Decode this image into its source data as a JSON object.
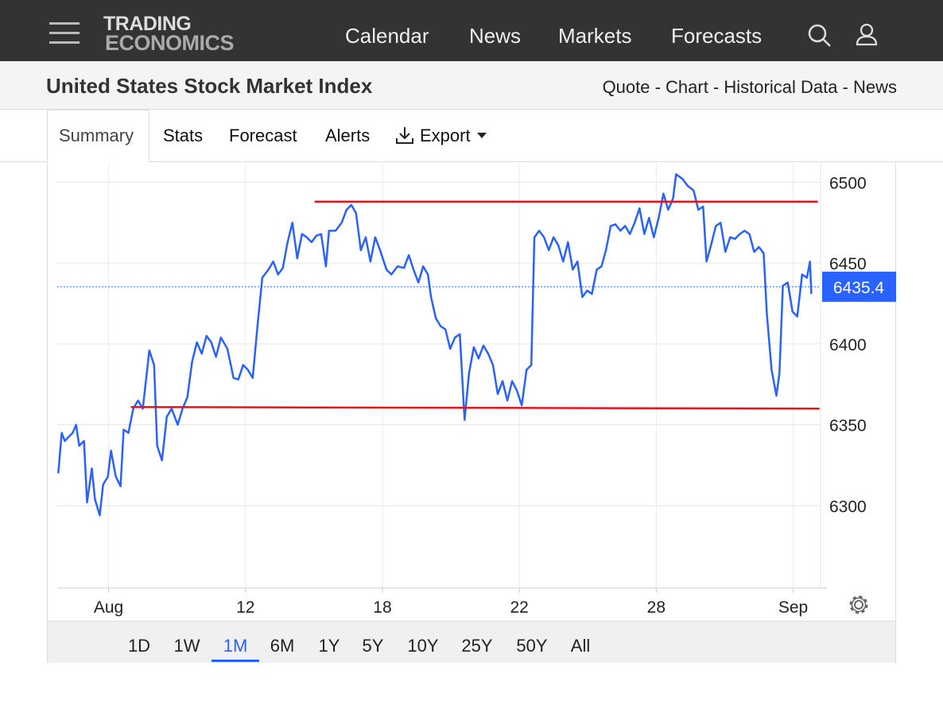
{
  "nav": {
    "logo": [
      "TRADING",
      "ECONOMICS"
    ],
    "links": [
      "Calendar",
      "News",
      "Markets",
      "Forecasts"
    ]
  },
  "header": {
    "title": "United States Stock Market Index",
    "subnav": "Quote - Chart - Historical Data - News"
  },
  "tabs": [
    "Summary",
    "Stats",
    "Forecast",
    "Alerts",
    "Export"
  ],
  "ranges": [
    "1D",
    "1W",
    "1M",
    "6M",
    "1Y",
    "5Y",
    "10Y",
    "25Y",
    "50Y",
    "All"
  ],
  "active_range": 2,
  "chart_data": {
    "type": "line",
    "x": [
      -1.47,
      -1.37,
      -1.28,
      -1.19,
      -1.05,
      -0.95,
      -0.86,
      -0.72,
      -0.63,
      -0.49,
      -0.4,
      -0.26,
      -0.16,
      -0.02,
      0.07,
      0.21,
      0.35,
      0.44,
      0.58,
      0.72,
      0.86,
      1.0,
      1.19,
      1.33,
      1.42,
      1.56,
      1.7,
      1.84,
      2.02,
      2.16,
      2.3,
      2.44,
      2.58,
      2.72,
      2.86,
      3.0,
      3.14,
      3.28,
      3.47,
      3.65,
      3.79,
      3.93,
      4.07,
      4.21,
      4.35,
      4.49,
      4.67,
      4.81,
      4.95,
      5.09,
      5.23,
      5.37,
      5.51,
      5.65,
      5.79,
      5.93,
      6.07,
      6.21,
      6.35,
      6.44,
      6.63,
      6.81,
      6.95,
      7.09,
      7.23,
      7.37,
      7.51,
      7.65,
      7.79,
      7.93,
      8.12,
      8.26,
      8.44,
      8.63,
      8.77,
      8.91,
      9.05,
      9.19,
      9.33,
      9.42,
      9.56,
      9.7,
      9.84,
      9.98,
      10.12,
      10.26,
      10.4,
      10.53,
      10.67,
      10.81,
      10.95,
      11.09,
      11.23,
      11.37,
      11.51,
      11.65,
      11.79,
      11.93,
      12.07,
      12.21,
      12.35,
      12.44,
      12.58,
      12.72,
      12.86,
      13.0,
      13.14,
      13.28,
      13.42,
      13.56,
      13.7,
      13.84,
      13.98,
      14.12,
      14.26,
      14.4,
      14.53,
      14.67,
      14.81,
      14.95,
      15.09,
      15.23,
      15.37,
      15.51,
      15.65,
      15.79,
      15.93,
      16.07,
      16.21,
      16.35,
      16.49,
      16.58,
      16.77,
      16.91,
      17.09,
      17.23,
      17.37,
      17.47,
      17.6,
      17.74,
      17.88,
      18.02,
      18.16,
      18.3,
      18.44,
      18.58,
      18.72,
      18.86,
      19.0,
      19.14,
      19.23,
      19.37,
      19.51,
      19.6,
      19.7,
      19.84,
      19.98,
      20.12,
      20.26,
      20.4,
      20.49,
      20.53
    ],
    "series": [
      {
        "color": "#2962ff",
        "values": [
          6320,
          6345,
          6340,
          6342,
          6345,
          6350,
          6337,
          6340,
          6302,
          6323,
          6304,
          6294,
          6313,
          6318,
          6334,
          6318,
          6312,
          6347,
          6345,
          6360,
          6365,
          6360,
          6396,
          6387,
          6337,
          6328,
          6355,
          6360,
          6350,
          6360,
          6367,
          6389,
          6401,
          6394,
          6405,
          6401,
          6392,
          6404,
          6397,
          6379,
          6378,
          6387,
          6384,
          6379,
          6411,
          6441,
          6446,
          6451,
          6443,
          6447,
          6463,
          6475,
          6453,
          6468,
          6466,
          6463,
          6467,
          6468,
          6448,
          6470,
          6470,
          6475,
          6483,
          6486,
          6481,
          6458,
          6466,
          6451,
          6466,
          6458,
          6446,
          6443,
          6448,
          6447,
          6455,
          6446,
          6438,
          6448,
          6443,
          6429,
          6416,
          6411,
          6409,
          6397,
          6404,
          6406,
          6353,
          6382,
          6398,
          6391,
          6399,
          6394,
          6387,
          6369,
          6377,
          6365,
          6377,
          6371,
          6362,
          6384,
          6387,
          6466,
          6470,
          6466,
          6458,
          6466,
          6461,
          6451,
          6463,
          6446,
          6451,
          6429,
          6433,
          6431,
          6446,
          6448,
          6458,
          6473,
          6474,
          6470,
          6473,
          6468,
          6475,
          6484,
          6468,
          6478,
          6466,
          6478,
          6493,
          6483,
          6490,
          6505,
          6502,
          6498,
          6495,
          6483,
          6485,
          6451,
          6461,
          6473,
          6475,
          6457,
          6466,
          6465,
          6468,
          6470,
          6468,
          6457,
          6460,
          6456,
          6419,
          6384,
          6368,
          6382,
          6436,
          6438,
          6420,
          6417,
          6443,
          6441,
          6451,
          6431
        ]
      }
    ],
    "trend_lines": [
      {
        "color": "#e8141a",
        "x": [
          6.02,
          20.72
        ],
        "values": [
          6488,
          6488
        ]
      },
      {
        "color": "#e8141a",
        "x": [
          0.65,
          20.77
        ],
        "values": [
          6361,
          6360
        ]
      }
    ],
    "last_value": 6435.4,
    "xlim": [
      -1.5,
      20.8
    ],
    "xticks": [
      {
        "value": 0,
        "label": "Aug"
      },
      {
        "value": 4,
        "label": "12"
      },
      {
        "value": 8,
        "label": "18"
      },
      {
        "value": 12,
        "label": "22"
      },
      {
        "value": 16,
        "label": "28"
      },
      {
        "value": 20,
        "label": "Sep"
      }
    ],
    "ylim": [
      6249,
      6512
    ],
    "yticks": [
      6300,
      6350,
      6400,
      6450,
      6500
    ],
    "grid": true
  }
}
